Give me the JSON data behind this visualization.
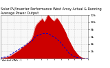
{
  "title": "Solar PV/Inverter Performance West Array Actual & Running Average Power Output",
  "subtitle": "Actual kWh ---",
  "bg_color": "#ffffff",
  "plot_bg_color": "#f8f8f8",
  "grid_color": "#aaaaaa",
  "bar_color": "#cc0000",
  "avg_color": "#0000cc",
  "n_points": 130,
  "red_shape": [
    0.0,
    0.01,
    0.01,
    0.01,
    0.02,
    0.02,
    0.02,
    0.03,
    0.03,
    0.03,
    0.04,
    0.04,
    0.05,
    0.05,
    0.06,
    0.07,
    0.08,
    0.09,
    0.1,
    0.11,
    0.12,
    0.13,
    0.14,
    0.15,
    0.16,
    0.17,
    0.18,
    0.19,
    0.2,
    0.22,
    0.23,
    0.25,
    0.26,
    0.27,
    0.28,
    0.29,
    0.3,
    0.32,
    0.33,
    0.35,
    0.36,
    0.37,
    0.39,
    0.4,
    0.42,
    0.44,
    0.46,
    0.5,
    0.54,
    0.6,
    0.66,
    0.72,
    0.75,
    0.78,
    0.8,
    0.82,
    0.83,
    0.85,
    0.87,
    0.88,
    0.89,
    0.91,
    0.92,
    0.88,
    0.85,
    0.86,
    0.88,
    0.91,
    0.95,
    0.98,
    1.0,
    0.99,
    0.97,
    0.95,
    0.93,
    0.91,
    0.9,
    0.88,
    0.87,
    0.86,
    0.88,
    0.9,
    0.92,
    0.93,
    0.92,
    0.9,
    0.88,
    0.85,
    0.83,
    0.8,
    0.78,
    0.75,
    0.72,
    0.69,
    0.66,
    0.63,
    0.6,
    0.56,
    0.52,
    0.48,
    0.45,
    0.42,
    0.39,
    0.36,
    0.33,
    0.3,
    0.27,
    0.24,
    0.21,
    0.19,
    0.17,
    0.15,
    0.13,
    0.11,
    0.09,
    0.08,
    0.06,
    0.05,
    0.04,
    0.03,
    0.02,
    0.02,
    0.01,
    0.01,
    0.01,
    0.0,
    0.0,
    0.0,
    0.0,
    0.0
  ],
  "avg_shape": [
    0.01,
    0.01,
    0.02,
    0.02,
    0.02,
    0.03,
    0.03,
    0.03,
    0.04,
    0.04,
    0.05,
    0.05,
    0.06,
    0.07,
    0.08,
    0.09,
    0.1,
    0.11,
    0.12,
    0.13,
    0.14,
    0.15,
    0.16,
    0.17,
    0.18,
    0.19,
    0.2,
    0.21,
    0.22,
    0.23,
    0.24,
    0.25,
    0.26,
    0.27,
    0.28,
    0.29,
    0.3,
    0.31,
    0.32,
    0.33,
    0.34,
    0.35,
    0.36,
    0.37,
    0.38,
    0.39,
    0.4,
    0.41,
    0.43,
    0.45,
    0.47,
    0.49,
    0.5,
    0.51,
    0.52,
    0.53,
    0.54,
    0.54,
    0.55,
    0.55,
    0.56,
    0.56,
    0.57,
    0.57,
    0.57,
    0.57,
    0.57,
    0.57,
    0.57,
    0.57,
    0.57,
    0.57,
    0.56,
    0.55,
    0.54,
    0.53,
    0.52,
    0.51,
    0.5,
    0.49,
    0.48,
    0.47,
    0.46,
    0.44,
    0.43,
    0.42,
    0.41,
    0.39,
    0.38,
    0.36,
    0.34,
    0.32,
    0.3,
    0.28,
    0.26,
    0.24,
    0.22,
    0.2,
    0.18,
    0.16,
    0.14,
    0.12,
    0.11,
    0.1,
    0.09,
    0.08,
    0.07,
    0.06,
    0.05,
    0.04,
    0.04,
    0.03,
    0.03,
    0.02,
    0.02,
    0.02,
    0.01,
    0.01,
    0.01,
    0.01,
    0.01,
    0.01,
    0.0,
    0.0,
    0.0,
    0.0,
    0.0,
    0.0,
    0.0,
    0.0
  ],
  "ymax": 1.0,
  "ytick_labels": [
    "2k",
    "4k",
    "6k",
    "8k",
    "10k",
    "12k"
  ],
  "ytick_positions": [
    0.167,
    0.333,
    0.5,
    0.667,
    0.833,
    1.0
  ],
  "n_xticks": 14,
  "tick_fontsize": 3.2,
  "title_fontsize": 3.5,
  "legend_fontsize": 3.0
}
